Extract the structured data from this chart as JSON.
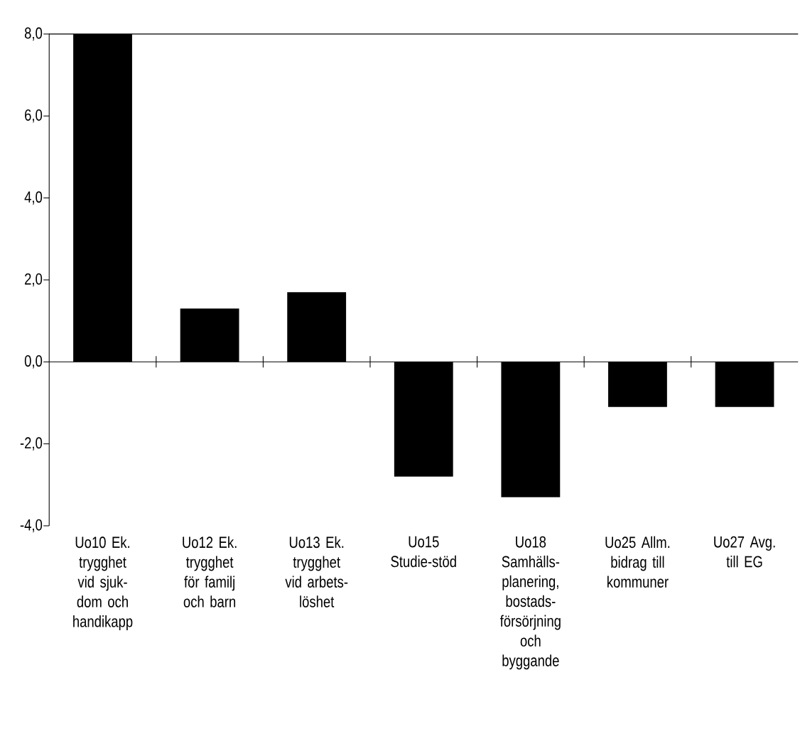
{
  "chart_data": {
    "type": "bar",
    "categories": [
      "Uo10 Ek. trygghet vid sjuk-dom och handikapp",
      "Uo12 Ek. trygghet för familj och barn",
      "Uo13 Ek. trygghet vid arbets-löshet",
      "Uo15 Studie-stöd",
      "Uo18 Samhälls-planering, bostads-försörjning och byggande",
      "Uo25 Allm. bidrag till kommuner",
      "Uo27 Avg. till EG"
    ],
    "values": [
      8.0,
      1.3,
      1.7,
      -2.8,
      -3.3,
      -1.1,
      -1.1
    ],
    "color": "#000000",
    "ylim": [
      -4,
      8
    ],
    "yticks": [
      {
        "value": -4,
        "label": "-4,0"
      },
      {
        "value": -2,
        "label": "-2,0"
      },
      {
        "value": 0,
        "label": "0,0"
      },
      {
        "value": 2,
        "label": "2,0"
      },
      {
        "value": 4,
        "label": "4,0"
      },
      {
        "value": 6,
        "label": "6,0"
      },
      {
        "value": 8,
        "label": "8,0"
      }
    ]
  }
}
